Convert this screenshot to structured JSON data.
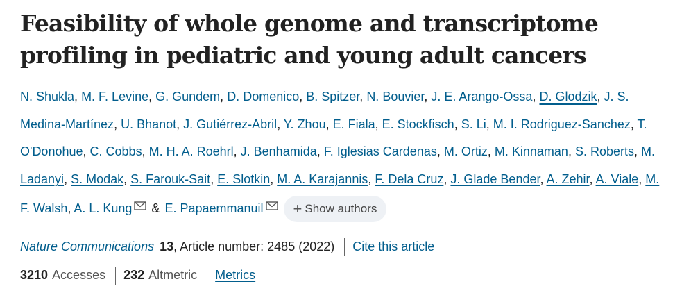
{
  "article": {
    "title": "Feasibility of whole genome and transcriptome profiling in pediatric and young adult cancers"
  },
  "authors": {
    "list": [
      "N. Shukla",
      "M. F. Levine",
      "G. Gundem",
      "D. Domenico",
      "B. Spitzer",
      "N. Bouvier",
      "J. E. Arango-Ossa",
      "D. Glodzik",
      "J. S. Medina-Martínez",
      "U. Bhanot",
      "J. Gutiérrez-Abril",
      "Y. Zhou",
      "E. Fiala",
      "E. Stockfisch",
      "S. Li",
      "M. I. Rodriguez-Sanchez",
      "T. O'Donohue",
      "C. Cobbs",
      "M. H. A. Roehrl",
      "J. Benhamida",
      "F. Iglesias Cardenas",
      "M. Ortiz",
      "M. Kinnaman",
      "S. Roberts",
      "M. Ladanyi",
      "S. Modak",
      "S. Farouk-Sait",
      "E. Slotkin",
      "M. A. Karajannis",
      "F. Dela Cruz",
      "J. Glade Bender",
      "A. Zehir",
      "A. Viale",
      "M. F. Walsh",
      "A. L. Kung"
    ],
    "last_author": "E. Papaemmanuil",
    "ampersand": "&",
    "comma": ",",
    "show_authors_label": "Show authors",
    "show_authors_icon": "+",
    "highlighted_author": "D. Glodzik",
    "mail_icon": "envelope-icon"
  },
  "citation": {
    "journal": "Nature Communications",
    "volume": "13",
    "article_number": ", Article number: 2485 (2022)",
    "cite_link": "Cite this article"
  },
  "metrics": {
    "accesses_value": "3210",
    "accesses_label": "Accesses",
    "altmetric_value": "232",
    "altmetric_label": "Altmetric",
    "metrics_link": "Metrics"
  },
  "colors": {
    "link": "#025e8d",
    "text": "#222222",
    "pill_background": "#eef1f5"
  }
}
